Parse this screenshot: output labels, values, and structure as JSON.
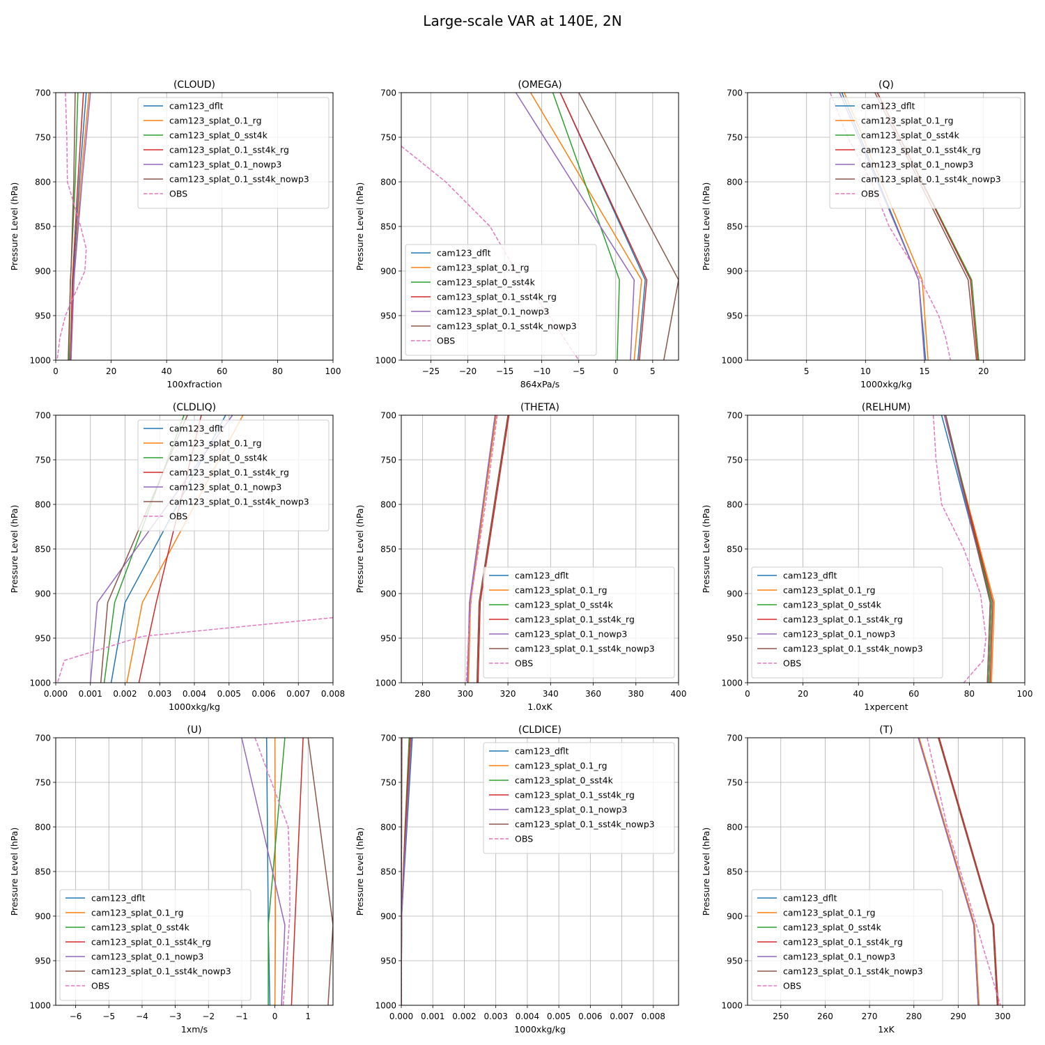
{
  "figure_title": "Large-scale VAR at 140E, 2N",
  "ylabel": "Pressure Level (hPa)",
  "series_names": [
    "cam123_dflt",
    "cam123_splat_0.1_rg",
    "cam123_splat_0_sst4k",
    "cam123_splat_0.1_sst4k_rg",
    "cam123_splat_0.1_nowp3",
    "cam123_splat_0.1_sst4k_nowp3",
    "OBS"
  ],
  "series_colors": [
    "#1f77b4",
    "#ff7f0e",
    "#2ca02c",
    "#d62728",
    "#9467bd",
    "#8c564b",
    "#e377c2"
  ],
  "series_dashed": [
    false,
    false,
    false,
    false,
    false,
    false,
    true
  ],
  "chart_data": [
    {
      "type": "line",
      "title": "(CLOUD)",
      "xlabel": "100xfraction",
      "xlim": [
        0,
        100
      ],
      "xticks": [
        0,
        20,
        40,
        60,
        80,
        100
      ],
      "xtick_labels": [
        "0",
        "20",
        "40",
        "60",
        "80",
        "100"
      ],
      "ylim": [
        700,
        1000
      ],
      "yticks": [
        700,
        750,
        800,
        850,
        900,
        950,
        1000
      ],
      "legend": "upper-right",
      "levels": [
        700,
        800,
        900,
        910,
        1000
      ],
      "series": [
        {
          "name": "cam123_dflt",
          "x": [
            11,
            8.5,
            6.5,
            6.3,
            5.2
          ]
        },
        {
          "name": "cam123_splat_0.1_rg",
          "x": [
            12,
            9,
            6.8,
            6.5,
            5.5
          ]
        },
        {
          "name": "cam123_splat_0_sst4k",
          "x": [
            8,
            7,
            5.5,
            5.3,
            4.8
          ]
        },
        {
          "name": "cam123_splat_0.1_sst4k_rg",
          "x": [
            10,
            8,
            6.2,
            6,
            5.3
          ]
        },
        {
          "name": "cam123_splat_0.1_nowp3",
          "x": [
            12.5,
            9.5,
            6.8,
            6.6,
            5.5
          ]
        },
        {
          "name": "cam123_splat_0.1_sst4k_nowp3",
          "x": [
            7,
            6.5,
            5.5,
            5.3,
            4.5
          ]
        },
        {
          "name": "OBS",
          "levels": [
            700,
            750,
            800,
            850,
            875,
            900,
            925,
            950,
            975,
            1000
          ],
          "x": [
            3.5,
            4,
            4.2,
            9,
            11,
            10.5,
            7,
            3.5,
            1.5,
            0.5
          ]
        }
      ]
    },
    {
      "type": "line",
      "title": "(OMEGA)",
      "xlabel": "864xPa/s",
      "xlim": [
        -29,
        8.5
      ],
      "xticks": [
        -25,
        -20,
        -15,
        -10,
        -5,
        0,
        5
      ],
      "xtick_labels": [
        "−25",
        "−20",
        "−15",
        "−10",
        "−5",
        "0",
        "5"
      ],
      "ylim": [
        700,
        1000
      ],
      "yticks": [
        700,
        750,
        800,
        850,
        900,
        950,
        1000
      ],
      "legend": "lower-left",
      "levels": [
        700,
        910,
        1000
      ],
      "series": [
        {
          "name": "cam123_dflt",
          "x": [
            -7.5,
            4,
            3
          ]
        },
        {
          "name": "cam123_splat_0.1_rg",
          "x": [
            -11.5,
            3.5,
            2.5
          ]
        },
        {
          "name": "cam123_splat_0_sst4k",
          "x": [
            -8.5,
            0.5,
            0.2
          ]
        },
        {
          "name": "cam123_splat_0.1_sst4k_rg",
          "x": [
            -7.5,
            4.2,
            3.2
          ]
        },
        {
          "name": "cam123_splat_0.1_nowp3",
          "x": [
            -13.5,
            2.5,
            2
          ]
        },
        {
          "name": "cam123_splat_0.1_sst4k_nowp3",
          "x": [
            -5,
            8.5,
            6.5
          ]
        },
        {
          "name": "OBS",
          "levels": [
            760,
            800,
            850,
            900,
            950,
            1000
          ],
          "x": [
            -29,
            -23,
            -17,
            -13.5,
            -9,
            -5
          ]
        }
      ]
    },
    {
      "type": "line",
      "title": "(Q)",
      "xlabel": "1000xkg/kg",
      "xlim": [
        0,
        23.5
      ],
      "xticks": [
        5,
        10,
        15,
        20
      ],
      "xtick_labels": [
        "5",
        "10",
        "15",
        "20"
      ],
      "ylim": [
        700,
        1000
      ],
      "yticks": [
        700,
        750,
        800,
        850,
        900,
        950,
        1000
      ],
      "legend": "upper-right",
      "levels": [
        700,
        910,
        1000
      ],
      "series": [
        {
          "name": "cam123_dflt",
          "x": [
            8,
            14.5,
            15.1
          ]
        },
        {
          "name": "cam123_splat_0.1_rg",
          "x": [
            8.2,
            14.8,
            15.3
          ]
        },
        {
          "name": "cam123_splat_0_sst4k",
          "x": [
            11,
            19,
            19.6
          ]
        },
        {
          "name": "cam123_splat_0.1_sst4k_rg",
          "x": [
            11,
            18.9,
            19.5
          ]
        },
        {
          "name": "cam123_splat_0.1_nowp3",
          "x": [
            7.8,
            14.5,
            15
          ]
        },
        {
          "name": "cam123_splat_0.1_sst4k_nowp3",
          "x": [
            10.8,
            18.7,
            19.4
          ]
        },
        {
          "name": "OBS",
          "levels": [
            700,
            750,
            800,
            850,
            900,
            950,
            975,
            1000
          ],
          "x": [
            7,
            8.5,
            10.5,
            12,
            14.3,
            16.2,
            16.8,
            17.2
          ]
        }
      ]
    },
    {
      "type": "line",
      "title": "(CLDLIQ)",
      "xlabel": "1000xkg/kg",
      "xlim": [
        0,
        0.008
      ],
      "xticks": [
        0,
        0.001,
        0.002,
        0.003,
        0.004,
        0.005,
        0.006,
        0.007,
        0.008
      ],
      "xtick_labels": [
        "0.000",
        "0.001",
        "0.002",
        "0.003",
        "0.004",
        "0.005",
        "0.006",
        "0.007",
        "0.008"
      ],
      "ylim": [
        700,
        1000
      ],
      "yticks": [
        700,
        750,
        800,
        850,
        900,
        950,
        1000
      ],
      "legend": "upper-right",
      "levels": [
        700,
        910,
        1000
      ],
      "series": [
        {
          "name": "cam123_dflt",
          "x": [
            0.0049,
            0.002,
            0.0016
          ]
        },
        {
          "name": "cam123_splat_0.1_rg",
          "x": [
            0.0054,
            0.0025,
            0.00205
          ]
        },
        {
          "name": "cam123_splat_0_sst4k",
          "x": [
            0.0037,
            0.0017,
            0.0014
          ]
        },
        {
          "name": "cam123_splat_0.1_sst4k_rg",
          "x": [
            0.0042,
            0.0029,
            0.0024
          ]
        },
        {
          "name": "cam123_splat_0.1_nowp3",
          "x": [
            0.0051,
            0.0012,
            0.001
          ]
        },
        {
          "name": "cam123_splat_0.1_sst4k_nowp3",
          "x": [
            0.0038,
            0.0015,
            0.0013
          ]
        },
        {
          "name": "OBS",
          "levels": [
            927,
            948,
            975,
            1000
          ],
          "x": [
            0.008,
            0.0025,
            0.00025,
            5e-05
          ]
        }
      ]
    },
    {
      "type": "line",
      "title": "(THETA)",
      "xlabel": "1.0xK",
      "xlim": [
        270,
        400
      ],
      "xticks": [
        280,
        300,
        320,
        340,
        360,
        380,
        400
      ],
      "xtick_labels": [
        "280",
        "300",
        "320",
        "340",
        "360",
        "380",
        "400"
      ],
      "ylim": [
        700,
        1000
      ],
      "yticks": [
        700,
        750,
        800,
        850,
        900,
        950,
        1000
      ],
      "legend": "lower-right",
      "levels": [
        700,
        910,
        1000
      ],
      "series": [
        {
          "name": "cam123_dflt",
          "x": [
            314,
            302,
            301
          ]
        },
        {
          "name": "cam123_splat_0.1_rg",
          "x": [
            314.5,
            302.5,
            301.5
          ]
        },
        {
          "name": "cam123_splat_0_sst4k",
          "x": [
            320,
            306.5,
            305.5
          ]
        },
        {
          "name": "cam123_splat_0.1_sst4k_rg",
          "x": [
            320.5,
            307,
            306
          ]
        },
        {
          "name": "cam123_splat_0.1_nowp3",
          "x": [
            314,
            302,
            301
          ]
        },
        {
          "name": "cam123_splat_0.1_sst4k_nowp3",
          "x": [
            320,
            306.5,
            305.5
          ]
        },
        {
          "name": "OBS",
          "levels": [
            700,
            800,
            900,
            950,
            1000
          ],
          "x": [
            315,
            309.5,
            303,
            301.5,
            300.5
          ]
        }
      ]
    },
    {
      "type": "line",
      "title": "(RELHUM)",
      "xlabel": "1xpercent",
      "xlim": [
        0,
        100
      ],
      "xticks": [
        0,
        20,
        40,
        60,
        80,
        100
      ],
      "xtick_labels": [
        "0",
        "20",
        "40",
        "60",
        "80",
        "100"
      ],
      "ylim": [
        700,
        1000
      ],
      "yticks": [
        700,
        750,
        800,
        850,
        900,
        950,
        1000
      ],
      "legend": "lower-left",
      "levels": [
        700,
        910,
        1000
      ],
      "series": [
        {
          "name": "cam123_dflt",
          "x": [
            70,
            88,
            87
          ]
        },
        {
          "name": "cam123_splat_0.1_rg",
          "x": [
            71,
            89,
            88
          ]
        },
        {
          "name": "cam123_splat_0_sst4k",
          "x": [
            71.5,
            88,
            87
          ]
        },
        {
          "name": "cam123_splat_0.1_sst4k_rg",
          "x": [
            71,
            88.5,
            87.5
          ]
        },
        {
          "name": "cam123_splat_0.1_nowp3",
          "x": [
            71,
            87.5,
            86.5
          ]
        },
        {
          "name": "cam123_splat_0.1_sst4k_nowp3",
          "x": [
            71.5,
            87.5,
            86.5
          ]
        },
        {
          "name": "OBS",
          "levels": [
            700,
            750,
            800,
            850,
            900,
            950,
            975,
            1000
          ],
          "x": [
            67,
            68,
            70,
            78,
            84,
            86,
            85,
            78
          ]
        }
      ]
    },
    {
      "type": "line",
      "title": "(U)",
      "xlabel": "1xm/s",
      "xlim": [
        -6.6,
        1.75
      ],
      "xticks": [
        -6,
        -5,
        -4,
        -3,
        -2,
        -1,
        0,
        1
      ],
      "xtick_labels": [
        "−6",
        "−5",
        "−4",
        "−3",
        "−2",
        "−1",
        "0",
        "1"
      ],
      "ylim": [
        700,
        1000
      ],
      "yticks": [
        700,
        750,
        800,
        850,
        900,
        950,
        1000
      ],
      "legend": "lower-left",
      "levels": [
        700,
        910,
        1000
      ],
      "series": [
        {
          "name": "cam123_dflt",
          "x": [
            -0.25,
            -0.2,
            -0.15
          ]
        },
        {
          "name": "cam123_splat_0.1_rg",
          "x": [
            0,
            0.02,
            0
          ]
        },
        {
          "name": "cam123_splat_0_sst4k",
          "x": [
            0.3,
            -0.2,
            -0.2
          ]
        },
        {
          "name": "cam123_splat_0.1_sst4k_rg",
          "x": [
            0.85,
            0.6,
            0.5
          ]
        },
        {
          "name": "cam123_splat_0.1_nowp3",
          "x": [
            -1,
            0.3,
            0.2
          ]
        },
        {
          "name": "cam123_splat_0.1_sst4k_nowp3",
          "x": [
            1,
            1.75,
            1.6
          ]
        },
        {
          "name": "OBS",
          "levels": [
            700,
            750,
            800,
            850,
            900,
            950,
            1000
          ],
          "x": [
            -0.6,
            -0.1,
            0.4,
            0.45,
            0.45,
            0.35,
            0.25
          ]
        }
      ]
    },
    {
      "type": "line",
      "title": "(CLDICE)",
      "xlabel": "1000xkg/kg",
      "xlim": [
        0,
        0.0088
      ],
      "xticks": [
        0,
        0.001,
        0.002,
        0.003,
        0.004,
        0.005,
        0.006,
        0.007,
        0.008
      ],
      "xtick_labels": [
        "0.000",
        "0.001",
        "0.002",
        "0.003",
        "0.004",
        "0.005",
        "0.006",
        "0.007",
        "0.008"
      ],
      "ylim": [
        700,
        1000
      ],
      "yticks": [
        700,
        750,
        800,
        850,
        900,
        950,
        1000
      ],
      "legend": "upper-right",
      "levels": [
        700,
        800,
        900,
        1000
      ],
      "series": [
        {
          "name": "cam123_dflt",
          "x": [
            0.00035,
            0.00018,
            1e-05,
            0
          ]
        },
        {
          "name": "cam123_splat_0.1_rg",
          "x": [
            0.0003,
            0.00015,
            1e-05,
            0
          ]
        },
        {
          "name": "cam123_splat_0_sst4k",
          "x": [
            0.00025,
            0.00012,
            1e-05,
            0
          ]
        },
        {
          "name": "cam123_splat_0.1_sst4k_rg",
          "x": [
            0.00028,
            0.00013,
            1e-05,
            0
          ]
        },
        {
          "name": "cam123_splat_0.1_nowp3",
          "x": [
            0.00032,
            0.00016,
            1e-05,
            0
          ]
        },
        {
          "name": "cam123_splat_0.1_sst4k_nowp3",
          "x": [
            2e-05,
            1e-05,
            0,
            0
          ]
        },
        {
          "name": "OBS",
          "levels": [
            700,
            1000
          ],
          "x": [
            0,
            0
          ]
        }
      ]
    },
    {
      "type": "line",
      "title": "(T)",
      "xlabel": "1xK",
      "xlim": [
        242.5,
        305
      ],
      "xticks": [
        250,
        260,
        270,
        280,
        290,
        300
      ],
      "xtick_labels": [
        "250",
        "260",
        "270",
        "280",
        "290",
        "300"
      ],
      "ylim": [
        700,
        1000
      ],
      "yticks": [
        700,
        750,
        800,
        850,
        900,
        950,
        1000
      ],
      "legend": "lower-left",
      "levels": [
        700,
        910,
        1000
      ],
      "series": [
        {
          "name": "cam123_dflt",
          "x": [
            281,
            293.5,
            294.5
          ]
        },
        {
          "name": "cam123_splat_0.1_rg",
          "x": [
            281.2,
            293.7,
            294.7
          ]
        },
        {
          "name": "cam123_splat_0_sst4k",
          "x": [
            285.5,
            297.8,
            298.8
          ]
        },
        {
          "name": "cam123_splat_0.1_sst4k_rg",
          "x": [
            285.7,
            298,
            299
          ]
        },
        {
          "name": "cam123_splat_0.1_nowp3",
          "x": [
            281,
            293.5,
            294.5
          ]
        },
        {
          "name": "cam123_splat_0.1_sst4k_nowp3",
          "x": [
            285.5,
            297.8,
            298.8
          ]
        },
        {
          "name": "OBS",
          "levels": [
            700,
            800,
            900,
            950,
            1000
          ],
          "x": [
            283,
            287.5,
            293.5,
            296.5,
            299.5
          ]
        }
      ]
    }
  ]
}
